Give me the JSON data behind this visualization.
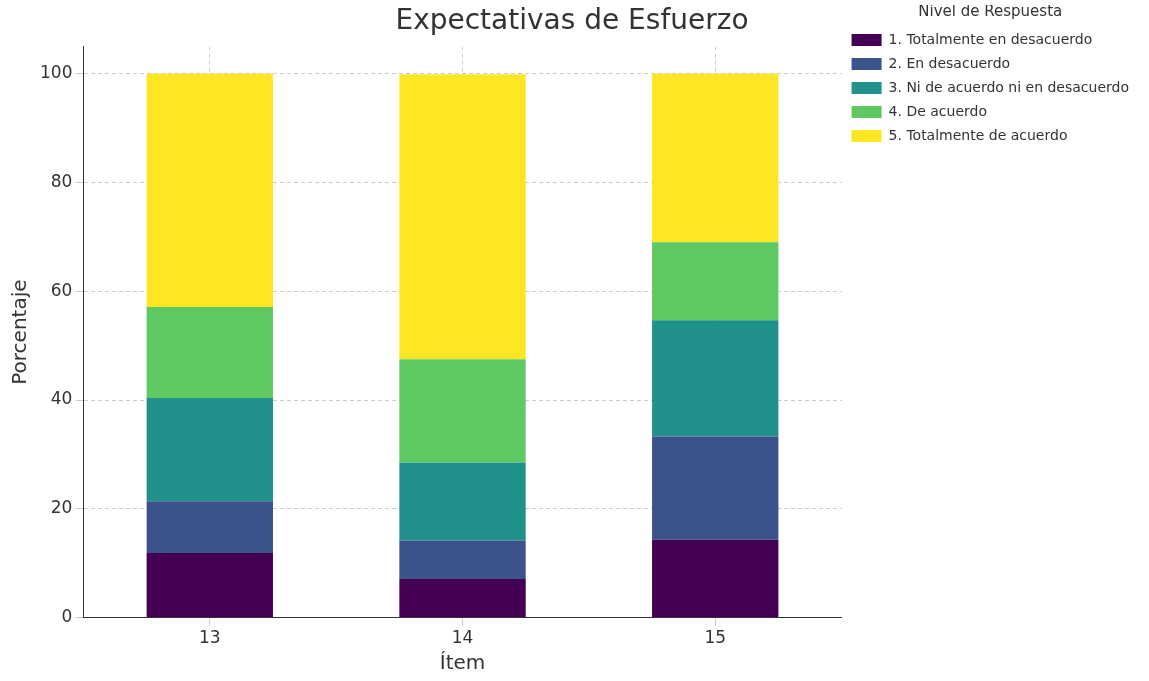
{
  "chart_data": {
    "type": "bar",
    "title": "Expectativas de Esfuerzo",
    "xlabel": "Ítem",
    "ylabel": "Porcentaje",
    "legend_title": "Nivel de Respuesta",
    "categories": [
      "13",
      "14",
      "15"
    ],
    "stacked": true,
    "series": [
      {
        "name": "1. Totalmente en desacuerdo",
        "color": "#440154",
        "values": [
          11.9,
          7.1,
          14.3
        ]
      },
      {
        "name": "2. En desacuerdo",
        "color": "#3b528b",
        "values": [
          9.5,
          7.1,
          19.0
        ]
      },
      {
        "name": "3. Ni de acuerdo ni en desacuerdo",
        "color": "#21918c",
        "values": [
          19.0,
          14.3,
          21.4
        ]
      },
      {
        "name": "4. De acuerdo",
        "color": "#5ec962",
        "values": [
          16.7,
          19.0,
          14.3
        ]
      },
      {
        "name": "5. Totalmente de acuerdo",
        "color": "#fde725",
        "values": [
          42.9,
          52.4,
          31.0
        ]
      }
    ],
    "ylim": [
      0,
      105
    ],
    "yticks": [
      0,
      20,
      40,
      60,
      80,
      100
    ],
    "grid": true,
    "legend": "top right"
  }
}
